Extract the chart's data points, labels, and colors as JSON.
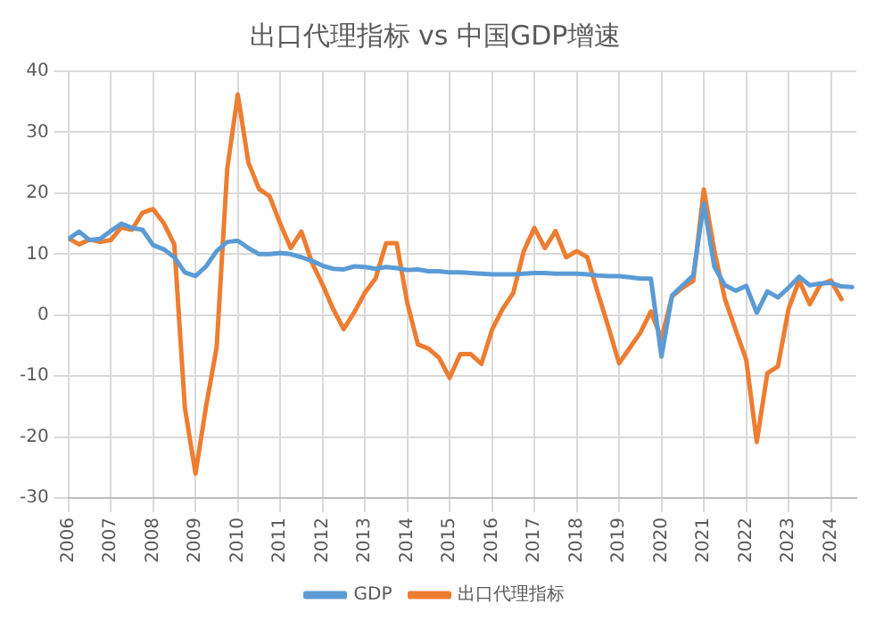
{
  "chart_data": {
    "type": "line",
    "title": "出口代理指标 vs 中国GDP增速",
    "x": [
      2006,
      2006.25,
      2006.5,
      2006.75,
      2007,
      2007.25,
      2007.5,
      2007.75,
      2008,
      2008.25,
      2008.5,
      2008.75,
      2009,
      2009.25,
      2009.5,
      2009.75,
      2010,
      2010.25,
      2010.5,
      2010.75,
      2011,
      2011.25,
      2011.5,
      2011.75,
      2012,
      2012.25,
      2012.5,
      2012.75,
      2013,
      2013.25,
      2013.5,
      2013.75,
      2014,
      2014.25,
      2014.5,
      2014.75,
      2015,
      2015.25,
      2015.5,
      2015.75,
      2016,
      2016.25,
      2016.5,
      2016.75,
      2017,
      2017.25,
      2017.5,
      2017.75,
      2018,
      2018.25,
      2018.5,
      2018.75,
      2019,
      2019.25,
      2019.5,
      2019.75,
      2020,
      2020.25,
      2020.5,
      2020.75,
      2021,
      2021.25,
      2021.5,
      2021.75,
      2022,
      2022.25,
      2022.5,
      2022.75,
      2023,
      2023.25,
      2023.5,
      2023.75,
      2024,
      2024.25,
      2024.5
    ],
    "series": [
      {
        "name": "GDP",
        "color": "#5b9bd5",
        "values": [
          12.5,
          13.7,
          12.3,
          12.5,
          13.8,
          15,
          14.3,
          14,
          11.5,
          10.8,
          9.5,
          7,
          6.4,
          8,
          10.5,
          12,
          12.2,
          11,
          10,
          10,
          10.2,
          10,
          9.5,
          8.9,
          8.1,
          7.6,
          7.5,
          8,
          7.9,
          7.6,
          7.9,
          7.7,
          7.4,
          7.5,
          7.2,
          7.2,
          7,
          7,
          6.9,
          6.8,
          6.7,
          6.7,
          6.7,
          6.8,
          6.9,
          6.9,
          6.8,
          6.8,
          6.8,
          6.7,
          6.5,
          6.4,
          6.4,
          6.2,
          6,
          6,
          -6.8,
          3.2,
          4.9,
          6.5,
          18.3,
          7.9,
          4.9,
          4,
          4.8,
          0.4,
          3.9,
          2.9,
          4.5,
          6.3,
          4.9,
          5.2,
          5.3,
          4.7,
          4.6
        ]
      },
      {
        "name": "出口代理指标",
        "color": "#ed7d31",
        "values": [
          12.6,
          11.6,
          12.4,
          12,
          12.3,
          14.4,
          14,
          16.8,
          17.4,
          15.1,
          11.6,
          -15.2,
          -26,
          -15,
          -5.3,
          24,
          36.2,
          25,
          20.7,
          19.5,
          15,
          11,
          13.7,
          8.6,
          5,
          1,
          -2.3,
          0.5,
          3.7,
          6,
          11.8,
          11.8,
          2,
          -4.8,
          -5.5,
          -7,
          -10.3,
          -6.4,
          -6.4,
          -8,
          -2.4,
          1,
          3.6,
          10.5,
          14.3,
          11,
          13.8,
          9.5,
          10.5,
          9.5,
          3.6,
          -2,
          -7.9,
          -5.4,
          -2.9,
          0.6,
          -3.9,
          3.1,
          4.5,
          5.6,
          20.6,
          10.5,
          2.6,
          -2.4,
          -7.3,
          -20.8,
          -9.5,
          -8.4,
          1,
          5.7,
          1.8,
          5,
          5.7,
          2.6,
          null
        ]
      }
    ],
    "xlim": [
      2006,
      2024.6
    ],
    "xticks": [
      2006,
      2007,
      2008,
      2009,
      2010,
      2011,
      2012,
      2013,
      2014,
      2015,
      2016,
      2017,
      2018,
      2019,
      2020,
      2021,
      2022,
      2023,
      2024
    ],
    "ylim": [
      -30,
      40
    ],
    "yticks": [
      -30,
      -20,
      -10,
      0,
      10,
      20,
      30,
      40
    ],
    "grid": true,
    "legend": "bottom",
    "marker": "none",
    "line_style": "solid"
  }
}
